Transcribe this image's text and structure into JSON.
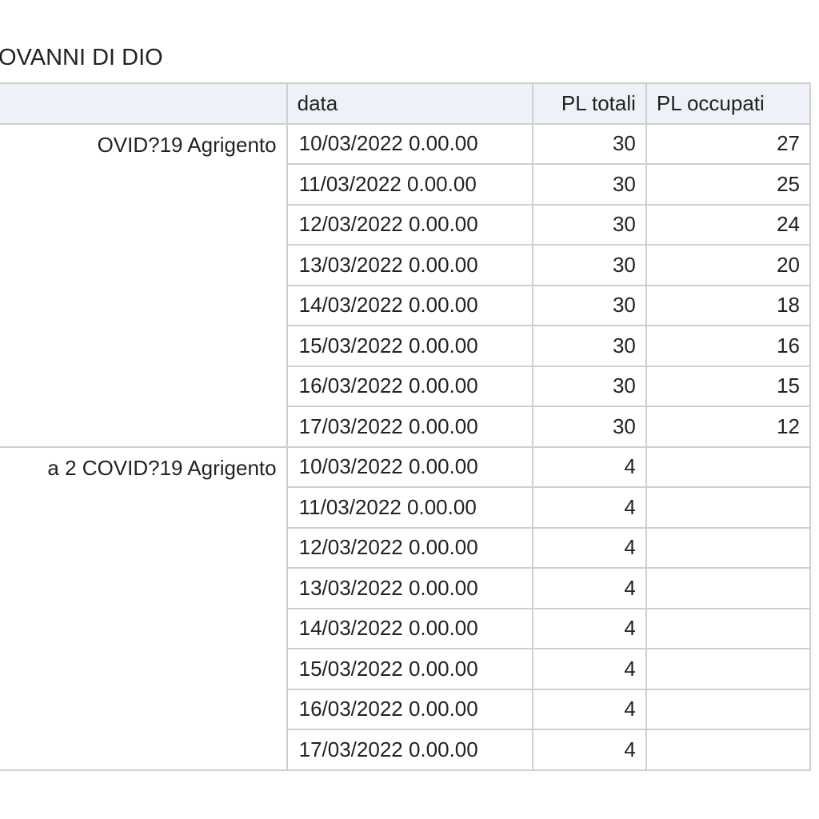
{
  "title": "OVANNI DI DIO",
  "table": {
    "headers": [
      "",
      "data",
      "PL totali",
      "PL occupati"
    ],
    "groups": [
      {
        "name": "OVID?19 Agrigento",
        "rows": [
          {
            "data": "10/03/2022 0.00.00",
            "pl_totali": "30",
            "pl_occupati": "27"
          },
          {
            "data": "11/03/2022 0.00.00",
            "pl_totali": "30",
            "pl_occupati": "25"
          },
          {
            "data": "12/03/2022 0.00.00",
            "pl_totali": "30",
            "pl_occupati": "24"
          },
          {
            "data": "13/03/2022 0.00.00",
            "pl_totali": "30",
            "pl_occupati": "20"
          },
          {
            "data": "14/03/2022 0.00.00",
            "pl_totali": "30",
            "pl_occupati": "18"
          },
          {
            "data": "15/03/2022 0.00.00",
            "pl_totali": "30",
            "pl_occupati": "16"
          },
          {
            "data": "16/03/2022 0.00.00",
            "pl_totali": "30",
            "pl_occupati": "15"
          },
          {
            "data": "17/03/2022 0.00.00",
            "pl_totali": "30",
            "pl_occupati": "12"
          }
        ]
      },
      {
        "name": "a 2 COVID?19 Agrigento",
        "rows": [
          {
            "data": "10/03/2022 0.00.00",
            "pl_totali": "4",
            "pl_occupati": ""
          },
          {
            "data": "11/03/2022 0.00.00",
            "pl_totali": "4",
            "pl_occupati": ""
          },
          {
            "data": "12/03/2022 0.00.00",
            "pl_totali": "4",
            "pl_occupati": ""
          },
          {
            "data": "13/03/2022 0.00.00",
            "pl_totali": "4",
            "pl_occupati": ""
          },
          {
            "data": "14/03/2022 0.00.00",
            "pl_totali": "4",
            "pl_occupati": ""
          },
          {
            "data": "15/03/2022 0.00.00",
            "pl_totali": "4",
            "pl_occupati": ""
          },
          {
            "data": "16/03/2022 0.00.00",
            "pl_totali": "4",
            "pl_occupati": ""
          },
          {
            "data": "17/03/2022 0.00.00",
            "pl_totali": "4",
            "pl_occupati": ""
          }
        ]
      }
    ]
  }
}
